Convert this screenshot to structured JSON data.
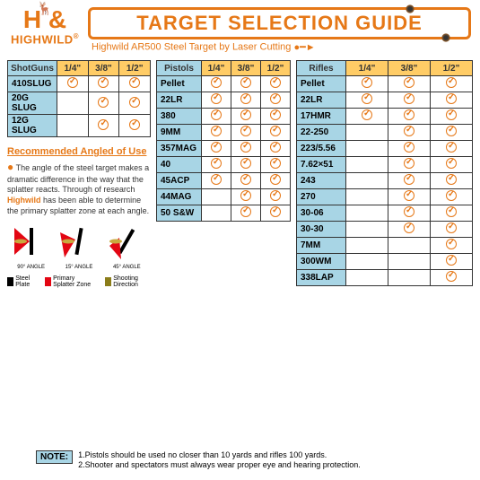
{
  "logo": {
    "mark": "H &",
    "brand": "HIGHWILD",
    "reg": "®"
  },
  "title": "TARGET SELECTION GUIDE",
  "subtitle": "Highwild AR500 Steel Target by Laser Cutting",
  "columns": [
    "1/4\"",
    "3/8\"",
    "1/2\""
  ],
  "shotguns": {
    "header": "ShotGuns",
    "rows": [
      {
        "label": "410SLUG",
        "v": [
          true,
          true,
          true
        ]
      },
      {
        "label": "20G SLUG",
        "v": [
          false,
          true,
          true
        ]
      },
      {
        "label": "12G SLUG",
        "v": [
          false,
          true,
          true
        ]
      }
    ]
  },
  "pistols": {
    "header": "Pistols",
    "rows": [
      {
        "label": "Pellet",
        "v": [
          true,
          true,
          true
        ]
      },
      {
        "label": "22LR",
        "v": [
          true,
          true,
          true
        ]
      },
      {
        "label": "380",
        "v": [
          true,
          true,
          true
        ]
      },
      {
        "label": "9MM",
        "v": [
          true,
          true,
          true
        ]
      },
      {
        "label": "357MAG",
        "v": [
          true,
          true,
          true
        ]
      },
      {
        "label": "40",
        "v": [
          true,
          true,
          true
        ]
      },
      {
        "label": "45ACP",
        "v": [
          true,
          true,
          true
        ]
      },
      {
        "label": "44MAG",
        "v": [
          false,
          true,
          true
        ]
      },
      {
        "label": "50 S&W",
        "v": [
          false,
          true,
          true
        ]
      }
    ]
  },
  "rifles": {
    "header": "Rifles",
    "rows": [
      {
        "label": "Pellet",
        "v": [
          true,
          true,
          true
        ]
      },
      {
        "label": "22LR",
        "v": [
          true,
          true,
          true
        ]
      },
      {
        "label": "17HMR",
        "v": [
          true,
          true,
          true
        ]
      },
      {
        "label": "22-250",
        "v": [
          false,
          true,
          true
        ]
      },
      {
        "label": "223/5.56",
        "v": [
          false,
          true,
          true
        ]
      },
      {
        "label": "7.62×51",
        "v": [
          false,
          true,
          true
        ]
      },
      {
        "label": "243",
        "v": [
          false,
          true,
          true
        ]
      },
      {
        "label": "270",
        "v": [
          false,
          true,
          true
        ]
      },
      {
        "label": "30-06",
        "v": [
          false,
          true,
          true
        ]
      },
      {
        "label": "30-30",
        "v": [
          false,
          true,
          true
        ]
      },
      {
        "label": "7MM",
        "v": [
          false,
          false,
          true
        ]
      },
      {
        "label": "300WM",
        "v": [
          false,
          false,
          true
        ]
      },
      {
        "label": "338LAP",
        "v": [
          false,
          false,
          true
        ]
      }
    ]
  },
  "rec": {
    "title": "Recommended Angled of Use",
    "text_before": "The angle of the steel target makes a dramatic difference in the way that the splatter reacts. Through of research ",
    "brand": "Highwild",
    "text_after": " has been able to determine the primary splatter zone at each angle."
  },
  "angles": [
    {
      "label": "90° ANGLE"
    },
    {
      "label": "15° ANGLE"
    },
    {
      "label": "45° ANGLE"
    }
  ],
  "legend": {
    "plate": {
      "label": "Steel Plate",
      "color": "#000000"
    },
    "splatter": {
      "label": "Primary Splatter Zone",
      "color": "#e30613"
    },
    "direction": {
      "label": "Shooting Direction",
      "color": "#8b7d1a"
    }
  },
  "note": {
    "badge": "NOTE:",
    "line1": "1.Pistols should be used no closer than 10 yards and rifles 100 yards.",
    "line2": "2.Shooter and spectators must always wear proper eye and hearing protection."
  },
  "colors": {
    "accent": "#e67817",
    "header_bg": "#ffcc66",
    "label_bg": "#a8d5e5",
    "splatter": "#e30613",
    "bullet": "#c9a83e"
  }
}
